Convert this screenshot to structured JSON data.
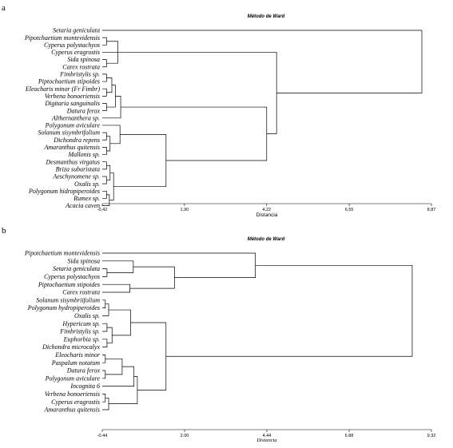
{
  "chart_data": [
    {
      "type": "dendrogram",
      "panel_letter": "a",
      "title": "Método de Ward",
      "xlabel": "Distancia",
      "xlabel_italic": false,
      "xlim": [
        -0.42,
        8.87
      ],
      "xticks": [
        -0.42,
        1.9,
        4.22,
        6.55,
        8.87
      ],
      "xtick_labels": [
        "-0,42",
        "1,90",
        "4,22",
        "6,55",
        "8,87"
      ],
      "leaves": [
        "Setaria geniculata",
        "Pipotchaetium montevidensis",
        "Cyperus polystachyos",
        "Cyperus eragrostis",
        "Sida spinosa",
        "Carex rostrata",
        "Fimbristylis sp.",
        "Piptochaetium stipoides",
        "Eleocharis minor (Fr Fimbr)",
        "Verbena bonoeriensis",
        "Digitaria sanguinalis",
        "Datura ferox",
        "Althernanthera sp.",
        "Polygonum aviculare",
        "Solanum sisymbrifolium",
        "Dichondra repens",
        "Amaranthus quitensis",
        "Mallonis sp.",
        "Desmanthus virgatus",
        "Briza subaristata",
        "Aeschynomene sp.",
        "Oxalis sp.",
        "Polygonum hidropiperoides",
        "Rumex sp.",
        "Acacia caven"
      ],
      "merges": [
        {
          "a": "L1",
          "b": "L2",
          "d": -0.3
        },
        {
          "a": "L4",
          "b": "L5",
          "d": -0.3
        },
        {
          "a": "M0",
          "b": "M1",
          "d": 0.02
        },
        {
          "a": "M2",
          "b": "L3",
          "d": 0.2
        },
        {
          "a": "L6",
          "b": "L7",
          "d": -0.3
        },
        {
          "a": "L8",
          "b": "L9",
          "d": -0.3
        },
        {
          "a": "L10",
          "b": "L11",
          "d": -0.3
        },
        {
          "a": "M4",
          "b": "M5",
          "d": -0.15
        },
        {
          "a": "M7",
          "b": "M6",
          "d": -0.05
        },
        {
          "a": "M8",
          "b": "L12",
          "d": 0.1
        },
        {
          "a": "L14",
          "b": "L15",
          "d": -0.3
        },
        {
          "a": "L16",
          "b": "L17",
          "d": -0.3
        },
        {
          "a": "M10",
          "b": "M11",
          "d": -0.2
        },
        {
          "a": "M12",
          "b": "L13",
          "d": 0.08
        },
        {
          "a": "L18",
          "b": "L19",
          "d": -0.3
        },
        {
          "a": "L20",
          "b": "L21",
          "d": -0.3
        },
        {
          "a": "M14",
          "b": "M15",
          "d": -0.2
        },
        {
          "a": "L22",
          "b": "L23",
          "d": -0.3
        },
        {
          "a": "M17",
          "b": "L24",
          "d": -0.22
        },
        {
          "a": "M16",
          "b": "M18",
          "d": -0.1
        },
        {
          "a": "M19",
          "b": "M13",
          "d": 1.38
        },
        {
          "a": "M9",
          "b": "M20",
          "d": 4.22
        },
        {
          "a": "M3",
          "b": "M21",
          "d": 4.5
        },
        {
          "a": "L0",
          "b": "M22",
          "d": 8.6
        }
      ]
    },
    {
      "type": "dendrogram",
      "panel_letter": "b",
      "title": "Método de Ward",
      "xlabel": "Distancia",
      "xlabel_italic": true,
      "xlim": [
        -0.44,
        9.32
      ],
      "xticks": [
        -0.44,
        2.0,
        4.44,
        6.88,
        9.32
      ],
      "xtick_labels": [
        "-0.44",
        "2.00",
        "4.44",
        "6.88",
        "9.32"
      ],
      "leaves": [
        "Pipotchaetium montevidensis",
        "Sida spinosa",
        "Setaria geniculata",
        "Cyperus polystachyos",
        "Piptochaetium stipoides",
        "Carex rostrata",
        "Solanum sisymbriifolium",
        "Polygonum hydropiperoides",
        "Oxalis sp.",
        "Hypericum sp.",
        "Fimbristylis sp.",
        "Euphorbia sp.",
        "Dichondra microcalyx",
        "Eleocharis minor",
        "Paspalum notatum",
        "Datura ferox",
        "Polygonum aviculare",
        "Incognita 6",
        "Verbena bonoeriensis",
        "Cyperus eragrostis",
        "Amaranthus quitensis"
      ],
      "merges": [
        {
          "a": "L2",
          "b": "L3",
          "d": -0.3
        },
        {
          "a": "L1",
          "b": "M0",
          "d": 0.48
        },
        {
          "a": "L4",
          "b": "L5",
          "d": 0.38
        },
        {
          "a": "M1",
          "b": "M2",
          "d": 1.7
        },
        {
          "a": "L0",
          "b": "M3",
          "d": 4.1
        },
        {
          "a": "L6",
          "b": "L7",
          "d": -0.35
        },
        {
          "a": "M5",
          "b": "L8",
          "d": -0.25
        },
        {
          "a": "L9",
          "b": "L10",
          "d": -0.3
        },
        {
          "a": "L11",
          "b": "L12",
          "d": -0.3
        },
        {
          "a": "M7",
          "b": "M8",
          "d": -0.15
        },
        {
          "a": "M6",
          "b": "M9",
          "d": 0.4
        },
        {
          "a": "L13",
          "b": "L14",
          "d": -0.35
        },
        {
          "a": "L15",
          "b": "L16",
          "d": -0.35
        },
        {
          "a": "M11",
          "b": "M12",
          "d": 0.15
        },
        {
          "a": "M13",
          "b": "L17",
          "d": 0.5
        },
        {
          "a": "L18",
          "b": "L19",
          "d": -0.35
        },
        {
          "a": "M15",
          "b": "L20",
          "d": -0.25
        },
        {
          "a": "M14",
          "b": "M16",
          "d": 0.6
        },
        {
          "a": "M10",
          "b": "M17",
          "d": 1.45
        },
        {
          "a": "M4",
          "b": "M18",
          "d": 8.75
        }
      ]
    }
  ]
}
